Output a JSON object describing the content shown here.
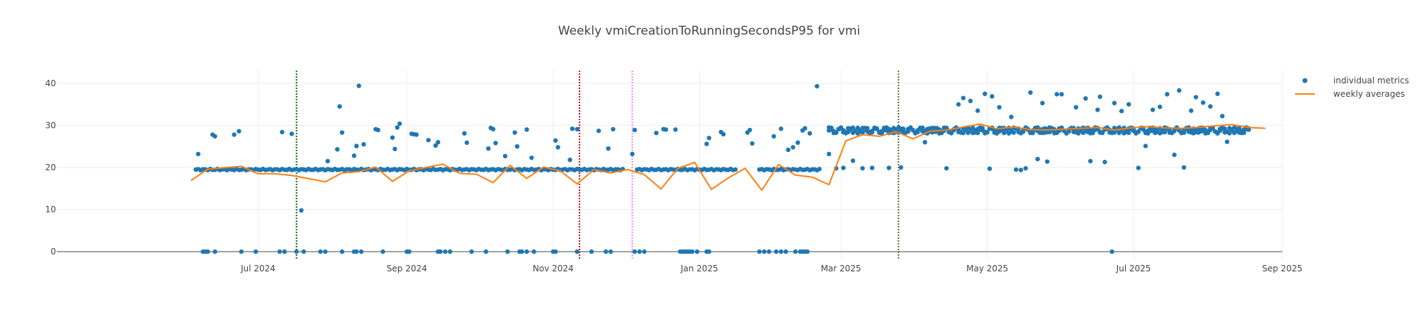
{
  "chart_data": {
    "type": "scatter",
    "title": "Weekly vmiCreationToRunningSecondsP95 for vmi",
    "xlabel": "",
    "ylabel": "",
    "xlim": [
      "2024-04-08",
      "2025-09-01"
    ],
    "ylim": [
      -2,
      43
    ],
    "x_ticks": [
      {
        "date": "2024-07-01",
        "label": "Jul 2024"
      },
      {
        "date": "2024-09-01",
        "label": "Sep 2024"
      },
      {
        "date": "2024-11-01",
        "label": "Nov 2024"
      },
      {
        "date": "2025-01-01",
        "label": "Jan 2025"
      },
      {
        "date": "2025-03-01",
        "label": "Mar 2025"
      },
      {
        "date": "2025-05-01",
        "label": "May 2025"
      },
      {
        "date": "2025-07-01",
        "label": "Jul 2025"
      },
      {
        "date": "2025-09-01",
        "label": "Sep 2025"
      }
    ],
    "y_ticks": [
      0,
      10,
      20,
      30,
      40
    ],
    "grid": true,
    "legend_position": "top-right",
    "colors": {
      "metrics": "#1f77b4",
      "averages": "#ff7f0e"
    },
    "vlines": [
      {
        "date": "2024-07-17",
        "color": "#006400",
        "style": "dotted"
      },
      {
        "date": "2024-11-12",
        "color": "#dd0000",
        "style": "dotted"
      },
      {
        "date": "2024-12-04",
        "color": "#ee82ee",
        "style": "dotted"
      },
      {
        "date": "2025-03-25",
        "color": "#556b2f",
        "style": "dotted"
      }
    ],
    "series": [
      {
        "name": "individual metrics",
        "mode": "markers",
        "segments": [
          {
            "start": "2024-06-05",
            "end": "2024-11-30",
            "base": 19.5
          },
          {
            "start": "2024-12-06",
            "end": "2025-01-16",
            "base": 19.5
          },
          {
            "start": "2025-01-26",
            "end": "2025-02-20",
            "base": 19.5
          },
          {
            "start": "2025-02-24",
            "end": "2025-08-18",
            "base": 28.8
          }
        ],
        "zeros": [
          "2024-06-08",
          "2024-06-09",
          "2024-06-10",
          "2024-06-13",
          "2024-06-24",
          "2024-06-30",
          "2024-07-10",
          "2024-07-12",
          "2024-07-17",
          "2024-07-20",
          "2024-07-27",
          "2024-07-29",
          "2024-08-05",
          "2024-08-10",
          "2024-08-11",
          "2024-08-13",
          "2024-08-22",
          "2024-09-01",
          "2024-09-02",
          "2024-09-14",
          "2024-09-15",
          "2024-09-17",
          "2024-09-19",
          "2024-09-28",
          "2024-10-04",
          "2024-10-13",
          "2024-10-18",
          "2024-10-19",
          "2024-10-21",
          "2024-10-24",
          "2024-11-01",
          "2024-11-02",
          "2024-11-11",
          "2024-11-17",
          "2024-11-23",
          "2024-11-25",
          "2024-12-05",
          "2024-12-07",
          "2024-12-09",
          "2024-12-24",
          "2024-12-25",
          "2024-12-26",
          "2024-12-27",
          "2024-12-28",
          "2024-12-29",
          "2024-12-31",
          "2025-01-04",
          "2025-01-05",
          "2025-01-26",
          "2025-01-28",
          "2025-01-30",
          "2025-02-02",
          "2025-02-04",
          "2025-02-06",
          "2025-02-10",
          "2025-02-12",
          "2025-02-13",
          "2025-02-14",
          "2025-02-15",
          "2025-06-22"
        ],
        "outliers": [
          [
            "2024-06-06",
            23.2
          ],
          [
            "2024-06-12",
            27.8
          ],
          [
            "2024-06-13",
            27.4
          ],
          [
            "2024-06-21",
            27.8
          ],
          [
            "2024-06-23",
            28.6
          ],
          [
            "2024-07-11",
            28.4
          ],
          [
            "2024-07-15",
            28.0
          ],
          [
            "2024-07-19",
            9.8
          ],
          [
            "2024-07-30",
            21.5
          ],
          [
            "2024-08-03",
            24.3
          ],
          [
            "2024-08-04",
            34.5
          ],
          [
            "2024-08-05",
            28.3
          ],
          [
            "2024-08-10",
            22.8
          ],
          [
            "2024-08-11",
            25.1
          ],
          [
            "2024-08-12",
            39.4
          ],
          [
            "2024-08-14",
            25.5
          ],
          [
            "2024-08-19",
            29.1
          ],
          [
            "2024-08-20",
            28.9
          ],
          [
            "2024-08-26",
            27.1
          ],
          [
            "2024-08-27",
            24.4
          ],
          [
            "2024-08-28",
            29.5
          ],
          [
            "2024-08-29",
            30.4
          ],
          [
            "2024-09-03",
            28.0
          ],
          [
            "2024-09-04",
            27.9
          ],
          [
            "2024-09-05",
            27.8
          ],
          [
            "2024-09-10",
            26.5
          ],
          [
            "2024-09-13",
            25.2
          ],
          [
            "2024-09-14",
            26.0
          ],
          [
            "2024-09-25",
            28.1
          ],
          [
            "2024-09-26",
            25.9
          ],
          [
            "2024-10-05",
            24.5
          ],
          [
            "2024-10-06",
            29.4
          ],
          [
            "2024-10-07",
            29.1
          ],
          [
            "2024-10-08",
            25.8
          ],
          [
            "2024-10-12",
            22.7
          ],
          [
            "2024-10-16",
            28.3
          ],
          [
            "2024-10-17",
            25.0
          ],
          [
            "2024-10-21",
            29.0
          ],
          [
            "2024-10-23",
            22.3
          ],
          [
            "2024-11-02",
            26.4
          ],
          [
            "2024-11-03",
            24.8
          ],
          [
            "2024-11-08",
            21.8
          ],
          [
            "2024-11-09",
            29.2
          ],
          [
            "2024-11-11",
            29.1
          ],
          [
            "2024-11-20",
            28.7
          ],
          [
            "2024-11-24",
            24.5
          ],
          [
            "2024-11-26",
            29.1
          ],
          [
            "2024-12-04",
            23.2
          ],
          [
            "2024-12-05",
            28.9
          ],
          [
            "2024-12-14",
            28.2
          ],
          [
            "2024-12-17",
            29.1
          ],
          [
            "2024-12-18",
            29.0
          ],
          [
            "2024-12-22",
            29.0
          ],
          [
            "2025-01-04",
            25.6
          ],
          [
            "2025-01-05",
            27.0
          ],
          [
            "2025-01-10",
            28.4
          ],
          [
            "2025-01-11",
            27.9
          ],
          [
            "2025-01-21",
            28.3
          ],
          [
            "2025-01-22",
            28.9
          ],
          [
            "2025-01-23",
            25.7
          ],
          [
            "2025-02-01",
            27.4
          ],
          [
            "2025-02-04",
            29.2
          ],
          [
            "2025-02-07",
            24.2
          ],
          [
            "2025-02-09",
            24.8
          ],
          [
            "2025-02-11",
            25.9
          ],
          [
            "2025-02-13",
            28.8
          ],
          [
            "2025-02-14",
            29.3
          ],
          [
            "2025-02-16",
            28.1
          ],
          [
            "2025-02-19",
            39.3
          ],
          [
            "2025-02-24",
            23.2
          ],
          [
            "2025-02-27",
            19.8
          ],
          [
            "2025-03-02",
            19.9
          ],
          [
            "2025-03-06",
            21.6
          ],
          [
            "2025-03-10",
            19.8
          ],
          [
            "2025-03-14",
            19.9
          ],
          [
            "2025-03-21",
            19.9
          ],
          [
            "2025-03-26",
            20.0
          ],
          [
            "2025-04-05",
            26.0
          ],
          [
            "2025-04-14",
            19.8
          ],
          [
            "2025-04-19",
            35.0
          ],
          [
            "2025-04-21",
            36.5
          ],
          [
            "2025-04-24",
            35.8
          ],
          [
            "2025-04-27",
            33.5
          ],
          [
            "2025-04-30",
            37.5
          ],
          [
            "2025-05-02",
            19.7
          ],
          [
            "2025-05-03",
            36.9
          ],
          [
            "2025-05-06",
            34.3
          ],
          [
            "2025-05-11",
            32.0
          ],
          [
            "2025-05-13",
            19.5
          ],
          [
            "2025-05-15",
            19.4
          ],
          [
            "2025-05-17",
            19.8
          ],
          [
            "2025-05-19",
            37.8
          ],
          [
            "2025-05-22",
            22.0
          ],
          [
            "2025-05-24",
            35.3
          ],
          [
            "2025-05-26",
            21.4
          ],
          [
            "2025-05-30",
            37.4
          ],
          [
            "2025-06-01",
            37.4
          ],
          [
            "2025-06-07",
            34.3
          ],
          [
            "2025-06-11",
            36.4
          ],
          [
            "2025-06-13",
            21.5
          ],
          [
            "2025-06-16",
            33.7
          ],
          [
            "2025-06-17",
            36.8
          ],
          [
            "2025-06-19",
            21.3
          ],
          [
            "2025-06-23",
            35.3
          ],
          [
            "2025-06-26",
            33.4
          ],
          [
            "2025-06-29",
            35.0
          ],
          [
            "2025-07-03",
            19.9
          ],
          [
            "2025-07-06",
            25.1
          ],
          [
            "2025-07-09",
            33.7
          ],
          [
            "2025-07-12",
            34.4
          ],
          [
            "2025-07-15",
            37.4
          ],
          [
            "2025-07-18",
            23.0
          ],
          [
            "2025-07-20",
            38.3
          ],
          [
            "2025-07-22",
            20.0
          ],
          [
            "2025-07-25",
            33.5
          ],
          [
            "2025-07-27",
            36.7
          ],
          [
            "2025-07-30",
            35.4
          ],
          [
            "2025-08-02",
            34.5
          ],
          [
            "2025-08-05",
            37.5
          ],
          [
            "2025-08-07",
            32.2
          ],
          [
            "2025-08-09",
            26.1
          ]
        ]
      },
      {
        "name": "weekly averages",
        "mode": "lines",
        "points": [
          [
            "2024-06-03",
            16.9
          ],
          [
            "2024-06-10",
            19.6
          ],
          [
            "2024-06-24",
            20.3
          ],
          [
            "2024-07-01",
            18.5
          ],
          [
            "2024-07-08",
            18.5
          ],
          [
            "2024-07-15",
            18.1
          ],
          [
            "2024-07-29",
            16.6
          ],
          [
            "2024-08-05",
            18.7
          ],
          [
            "2024-08-12",
            19.0
          ],
          [
            "2024-08-19",
            20.1
          ],
          [
            "2024-08-26",
            16.7
          ],
          [
            "2024-09-02",
            19.2
          ],
          [
            "2024-09-16",
            20.8
          ],
          [
            "2024-09-23",
            18.6
          ],
          [
            "2024-09-30",
            18.4
          ],
          [
            "2024-10-07",
            16.4
          ],
          [
            "2024-10-14",
            20.5
          ],
          [
            "2024-10-21",
            17.4
          ],
          [
            "2024-10-28",
            20.1
          ],
          [
            "2024-11-04",
            19.2
          ],
          [
            "2024-11-11",
            16.1
          ],
          [
            "2024-11-18",
            19.5
          ],
          [
            "2024-11-25",
            18.7
          ],
          [
            "2024-12-02",
            19.5
          ],
          [
            "2024-12-09",
            18.3
          ],
          [
            "2024-12-16",
            14.9
          ],
          [
            "2024-12-23",
            19.8
          ],
          [
            "2024-12-30",
            21.2
          ],
          [
            "2025-01-06",
            14.8
          ],
          [
            "2025-01-13",
            17.5
          ],
          [
            "2025-01-20",
            19.8
          ],
          [
            "2025-01-27",
            14.6
          ],
          [
            "2025-02-03",
            20.7
          ],
          [
            "2025-02-10",
            18.2
          ],
          [
            "2025-02-17",
            17.7
          ],
          [
            "2025-02-24",
            15.9
          ],
          [
            "2025-03-03",
            26.3
          ],
          [
            "2025-03-10",
            27.8
          ],
          [
            "2025-03-17",
            27.4
          ],
          [
            "2025-03-24",
            28.5
          ],
          [
            "2025-03-31",
            26.8
          ],
          [
            "2025-04-07",
            28.6
          ],
          [
            "2025-04-14",
            28.9
          ],
          [
            "2025-04-21",
            29.6
          ],
          [
            "2025-04-28",
            30.3
          ],
          [
            "2025-05-05",
            29.2
          ],
          [
            "2025-05-12",
            29.6
          ],
          [
            "2025-05-19",
            29.0
          ],
          [
            "2025-05-26",
            28.9
          ],
          [
            "2025-06-02",
            29.1
          ],
          [
            "2025-06-09",
            29.3
          ],
          [
            "2025-06-16",
            29.5
          ],
          [
            "2025-06-23",
            28.9
          ],
          [
            "2025-06-30",
            29.4
          ],
          [
            "2025-07-07",
            29.7
          ],
          [
            "2025-07-14",
            29.4
          ],
          [
            "2025-07-21",
            29.3
          ],
          [
            "2025-07-28",
            29.5
          ],
          [
            "2025-08-04",
            29.9
          ],
          [
            "2025-08-11",
            30.2
          ],
          [
            "2025-08-18",
            29.5
          ],
          [
            "2025-08-25",
            29.3
          ]
        ]
      }
    ]
  }
}
